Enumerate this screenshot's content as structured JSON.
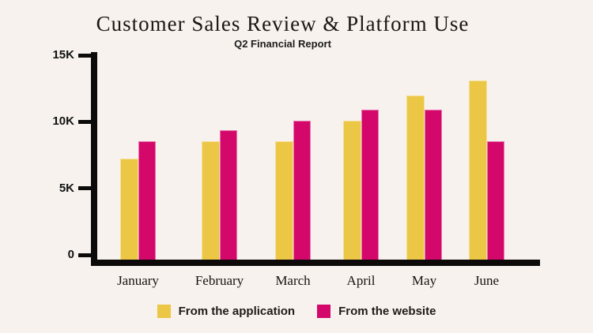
{
  "chart": {
    "title": "Customer Sales Review & Platform Use",
    "subtitle": "Q2 Financial Report"
  },
  "chart_data": {
    "type": "bar",
    "title": "Customer Sales Review & Platform Use",
    "subtitle": "Q2 Financial Report",
    "categories": [
      "January",
      "February",
      "March",
      "April",
      "May",
      "June"
    ],
    "series": [
      {
        "name": "From the application",
        "color": "#ECC645",
        "values": [
          7300,
          8600,
          8600,
          10100,
          11900,
          13000
        ]
      },
      {
        "name": "From the website",
        "color": "#D4076B",
        "values": [
          8600,
          9400,
          10100,
          10900,
          10900,
          8600
        ]
      }
    ],
    "xlabel": "",
    "ylabel": "",
    "ylim": [
      0,
      15000
    ],
    "yticks": [
      {
        "value": 0,
        "label": "0"
      },
      {
        "value": 5000,
        "label": "5K"
      },
      {
        "value": 10000,
        "label": "10K"
      },
      {
        "value": 15000,
        "label": "15K"
      }
    ],
    "grid": false,
    "legend_position": "bottom",
    "background_color": "#F7F2ED",
    "axis_color": "#0D0B09"
  }
}
